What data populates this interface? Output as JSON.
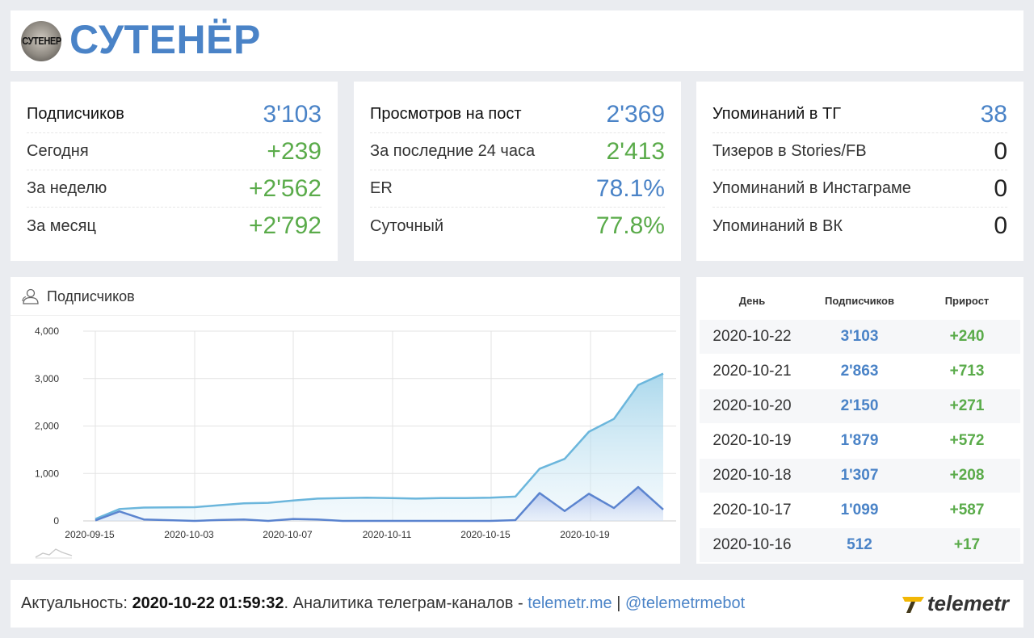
{
  "channel": {
    "title": "СУТЕНЁР",
    "avatar_text": "СУТЕНЕР"
  },
  "stats": [
    {
      "rows": [
        {
          "label": "Подписчиков",
          "value": "3'103",
          "color": "blue"
        },
        {
          "label": "Сегодня",
          "value": "+239",
          "color": "green"
        },
        {
          "label": "За неделю",
          "value": "+2'562",
          "color": "green"
        },
        {
          "label": "За месяц",
          "value": "+2'792",
          "color": "green"
        }
      ]
    },
    {
      "rows": [
        {
          "label": "Просмотров на пост",
          "value": "2'369",
          "color": "blue"
        },
        {
          "label": "За последние 24 часа",
          "value": "2'413",
          "color": "green"
        },
        {
          "label": "ER",
          "value": "78.1%",
          "color": "blue"
        },
        {
          "label": "Суточный",
          "value": "77.8%",
          "color": "green"
        }
      ]
    },
    {
      "rows": [
        {
          "label": "Упоминаний в ТГ",
          "value": "38",
          "color": "blue"
        },
        {
          "label": "Тизеров в Stories/FB",
          "value": "0",
          "color": "dark"
        },
        {
          "label": "Упоминаний в Инстаграме",
          "value": "0",
          "color": "dark"
        },
        {
          "label": "Упоминаний в ВК",
          "value": "0",
          "color": "dark"
        }
      ]
    }
  ],
  "chart": {
    "title": "Подписчиков",
    "icon": "users-icon"
  },
  "chart_data": {
    "type": "area",
    "title": "Подписчиков",
    "x": [
      "2020-09-15",
      "2020-09-16",
      "2020-09-17",
      "2020-10-03",
      "2020-10-04",
      "2020-10-05",
      "2020-10-06",
      "2020-10-07",
      "2020-10-08",
      "2020-10-09",
      "2020-10-10",
      "2020-10-11",
      "2020-10-12",
      "2020-10-13",
      "2020-10-14",
      "2020-10-15",
      "2020-10-16",
      "2020-10-17",
      "2020-10-18",
      "2020-10-19",
      "2020-10-20",
      "2020-10-21",
      "2020-10-22"
    ],
    "x_ticks": [
      "2020-09-15",
      "2020-10-03",
      "2020-10-07",
      "2020-10-11",
      "2020-10-15",
      "2020-10-19"
    ],
    "series": [
      {
        "values": [
          40,
          250,
          280,
          290,
          330,
          370,
          380,
          430,
          470,
          480,
          490,
          480,
          470,
          480,
          480,
          490,
          512,
          1099,
          1307,
          1879,
          2150,
          2863,
          3103
        ],
        "color": "#6bb6dc"
      },
      {
        "values": [
          10,
          200,
          30,
          0,
          20,
          30,
          0,
          40,
          30,
          0,
          0,
          0,
          0,
          0,
          0,
          0,
          17,
          587,
          208,
          572,
          271,
          713,
          240
        ],
        "color": "#5b84cf"
      }
    ],
    "ylim": [
      0,
      4000
    ],
    "y_ticks": [
      0,
      1000,
      2000,
      3000,
      4000
    ],
    "y_tick_labels": [
      "0",
      "1,000",
      "2,000",
      "3,000",
      "4,000"
    ],
    "grid": true
  },
  "table": {
    "headers": {
      "day": "День",
      "subs": "Подписчиков",
      "growth": "Прирост"
    },
    "rows": [
      {
        "day": "2020-10-22",
        "subs": "3'103",
        "growth": "+240"
      },
      {
        "day": "2020-10-21",
        "subs": "2'863",
        "growth": "+713"
      },
      {
        "day": "2020-10-20",
        "subs": "2'150",
        "growth": "+271"
      },
      {
        "day": "2020-10-19",
        "subs": "1'879",
        "growth": "+572"
      },
      {
        "day": "2020-10-18",
        "subs": "1'307",
        "growth": "+208"
      },
      {
        "day": "2020-10-17",
        "subs": "1'099",
        "growth": "+587"
      },
      {
        "day": "2020-10-16",
        "subs": "512",
        "growth": "+17"
      }
    ]
  },
  "footer": {
    "prefix": "Актуальность: ",
    "timestamp": "2020-10-22 01:59:32",
    "middle": ". Аналитика телеграм-каналов - ",
    "link1": "telemetr.me",
    "separator": " | ",
    "link2": "@telemetrmebot",
    "brand": "telemetr"
  },
  "colors": {
    "blue": "#4a83c7",
    "green": "#5aab4a",
    "dark": "#222222",
    "brand_yellow": "#f2b705"
  }
}
